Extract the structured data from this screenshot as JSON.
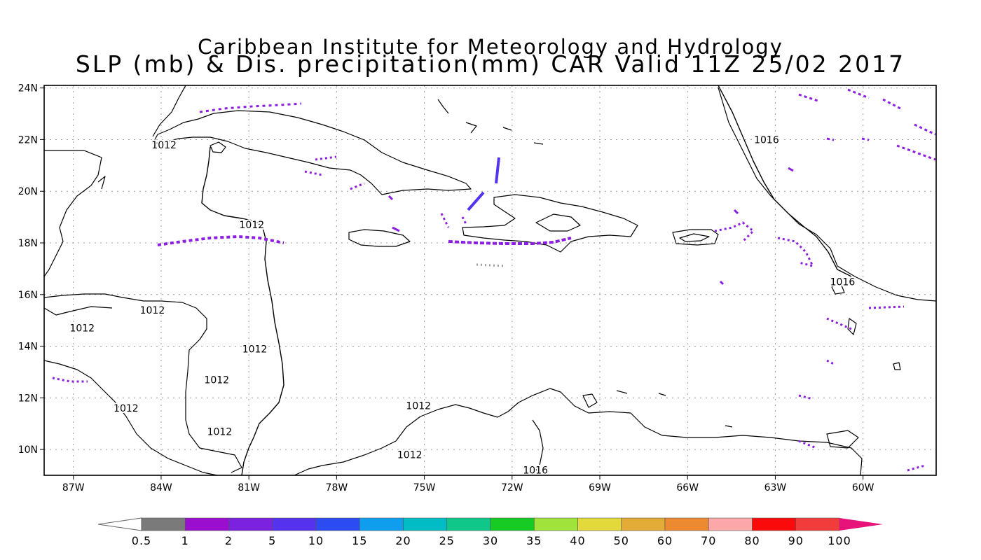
{
  "header": {
    "title_line1": "Caribbean Institute for Meteorology and Hydrology",
    "title_line2": "SLP (mb) & Dis. precipitation(mm) CAR Valid 11Z 25/02 2017"
  },
  "map": {
    "lon_range": [
      -88,
      -57.5
    ],
    "lat_range": [
      9,
      24.1
    ],
    "lat_ticks": [
      {
        "lat": 24,
        "label": "24N"
      },
      {
        "lat": 22,
        "label": "22N"
      },
      {
        "lat": 20,
        "label": "20N"
      },
      {
        "lat": 18,
        "label": "18N"
      },
      {
        "lat": 16,
        "label": "16N"
      },
      {
        "lat": 14,
        "label": "14N"
      },
      {
        "lat": 12,
        "label": "12N"
      },
      {
        "lat": 10,
        "label": "10N"
      }
    ],
    "lon_ticks": [
      {
        "lon": -87,
        "label": "87W"
      },
      {
        "lon": -84,
        "label": "84W"
      },
      {
        "lon": -81,
        "label": "81W"
      },
      {
        "lon": -78,
        "label": "78W"
      },
      {
        "lon": -75,
        "label": "75W"
      },
      {
        "lon": -72,
        "label": "72W"
      },
      {
        "lon": -69,
        "label": "69W"
      },
      {
        "lon": -66,
        "label": "66W"
      },
      {
        "lon": -63,
        "label": "63W"
      },
      {
        "lon": -60,
        "label": "60W"
      }
    ],
    "grid": true,
    "isobar_labels": [
      {
        "text": "1012",
        "lon": -83.9,
        "lat": 21.8
      },
      {
        "text": "1012",
        "lon": -80.9,
        "lat": 18.7
      },
      {
        "text": "1012",
        "lon": -86.7,
        "lat": 14.7
      },
      {
        "text": "1012",
        "lon": -84.3,
        "lat": 15.4
      },
      {
        "text": "1012",
        "lon": -80.8,
        "lat": 13.9
      },
      {
        "text": "1012",
        "lon": -82.1,
        "lat": 12.7
      },
      {
        "text": "1012",
        "lon": -85.2,
        "lat": 11.6
      },
      {
        "text": "1012",
        "lon": -82.0,
        "lat": 10.7
      },
      {
        "text": "1012",
        "lon": -75.2,
        "lat": 11.7
      },
      {
        "text": "1012",
        "lon": -75.5,
        "lat": 9.8
      },
      {
        "text": "1016",
        "lon": -71.2,
        "lat": 9.2
      },
      {
        "text": "1016",
        "lon": -63.3,
        "lat": 22.0
      },
      {
        "text": "1016",
        "lon": -60.7,
        "lat": 16.5
      }
    ]
  },
  "colorbar": {
    "colors": [
      "#7a7a7a",
      "#9a0fcf",
      "#7a22e0",
      "#5533ee",
      "#2d4bf2",
      "#0f9eee",
      "#00bcc4",
      "#10c78a",
      "#16cc24",
      "#a0e33a",
      "#e3d93a",
      "#e3ac36",
      "#ec8a32",
      "#fca8a8",
      "#fa0a0a",
      "#f23c3c"
    ],
    "labels": [
      "0.5",
      "1",
      "2",
      "5",
      "10",
      "15",
      "20",
      "25",
      "30",
      "35",
      "40",
      "50",
      "60",
      "70",
      "80",
      "90",
      "100"
    ],
    "end_colors": {
      "low": "#ffffff",
      "high": "#e8137a"
    }
  }
}
